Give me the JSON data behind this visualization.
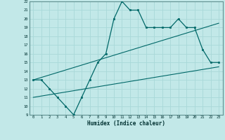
{
  "xlabel": "Humidex (Indice chaleur)",
  "bg_color": "#c2e8e8",
  "grid_color": "#a8d8d8",
  "line_color": "#006868",
  "xlim": [
    -0.5,
    23.5
  ],
  "ylim": [
    9,
    22
  ],
  "xtick_vals": [
    0,
    1,
    2,
    3,
    4,
    5,
    6,
    7,
    8,
    9,
    10,
    11,
    12,
    13,
    14,
    15,
    16,
    17,
    18,
    19,
    20,
    21,
    22,
    23
  ],
  "ytick_vals": [
    9,
    10,
    11,
    12,
    13,
    14,
    15,
    16,
    17,
    18,
    19,
    20,
    21,
    22
  ],
  "line1_x": [
    0,
    1,
    2,
    3,
    4,
    5,
    6,
    7,
    8,
    9,
    10,
    11,
    12,
    13,
    14,
    15,
    16,
    17,
    18,
    19,
    20,
    21,
    22,
    23
  ],
  "line1_y": [
    13,
    13,
    12,
    11,
    10,
    9,
    11,
    13,
    15,
    16,
    20,
    22,
    21,
    21,
    19,
    19,
    19,
    19,
    20,
    19,
    19,
    16.5,
    15,
    15
  ],
  "line2_x": [
    0,
    23
  ],
  "line2_y": [
    11,
    14.5
  ],
  "line3_x": [
    0,
    23
  ],
  "line3_y": [
    13,
    19.5
  ]
}
